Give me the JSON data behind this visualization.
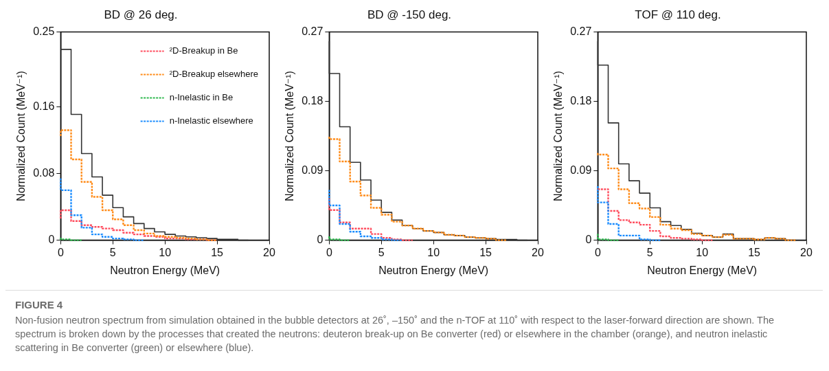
{
  "chart_data": [
    {
      "type": "step",
      "title": "BD @ 26 deg.",
      "xlabel": "Neutron Energy (MeV)",
      "ylabel": "Normalized Count (MeV⁻¹)",
      "x": [
        0,
        1,
        2,
        3,
        4,
        5,
        6,
        7,
        8,
        9,
        10,
        11,
        12,
        13,
        14,
        15,
        16,
        17,
        18
      ],
      "xlim": [
        0,
        20
      ],
      "xticks": [
        0,
        5,
        10,
        15,
        20
      ],
      "ylim": [
        0,
        0.25
      ],
      "yticks": [
        0,
        0.08,
        0.16,
        0.25
      ],
      "grid": false,
      "legend": "top right",
      "series": [
        {
          "color": "#333333",
          "line_style": "solid",
          "values": [
            0.229,
            0.229,
            0.151,
            0.104,
            0.076,
            0.054,
            0.039,
            0.028,
            0.02,
            0.014,
            0.01,
            0.007,
            0.005,
            0.004,
            0.003,
            0.002,
            0.001,
            0.001,
            0
          ]
        },
        {
          "name": "²D-Breakup in Be",
          "color": "#ff4d5e",
          "line_style": "dotted",
          "values": [
            0.026,
            0.036,
            0.023,
            0.018,
            0.016,
            0.014,
            0.012,
            0.009,
            0.007,
            0.005,
            0.004,
            0.002,
            0.002,
            0.001,
            0.001,
            0,
            null,
            null,
            null
          ]
        },
        {
          "name": "²D-Breakup elsewhere",
          "color": "#ff8c1a",
          "line_style": "dotted",
          "values": [
            0.125,
            0.132,
            0.097,
            0.07,
            0.052,
            0.036,
            0.025,
            0.018,
            0.012,
            0.008,
            0.005,
            0.004,
            0.003,
            0.002,
            0.001,
            0,
            null,
            null,
            null
          ]
        },
        {
          "name": "n-Inelastic in Be",
          "color": "#2db84d",
          "line_style": "dotted",
          "values": [
            0.003,
            0.001,
            0,
            null,
            null,
            null,
            null,
            null,
            null,
            null,
            null,
            null,
            null,
            null,
            null,
            null,
            null,
            null,
            null
          ]
        },
        {
          "name": "n-Inelastic elsewhere",
          "color": "#1a8cff",
          "line_style": "dotted",
          "values": [
            0.074,
            0.06,
            0.03,
            0.015,
            0.007,
            0.004,
            0.002,
            0.001,
            0,
            null,
            null,
            null,
            null,
            null,
            null,
            null,
            null,
            null,
            null
          ]
        }
      ]
    },
    {
      "type": "step",
      "title": "BD @ -150 deg.",
      "xlabel": "Neutron Energy (MeV)",
      "ylabel": "Normalized Count (MeV⁻¹)",
      "x": [
        0,
        1,
        2,
        3,
        4,
        5,
        6,
        7,
        8,
        9,
        10,
        11,
        12,
        13,
        14,
        15,
        16,
        17,
        18,
        19
      ],
      "xlim": [
        0,
        20
      ],
      "xticks": [
        0,
        5,
        10,
        15,
        20
      ],
      "ylim": [
        0,
        0.27
      ],
      "yticks": [
        0,
        0.09,
        0.18,
        0.27
      ],
      "grid": false,
      "series": [
        {
          "color": "#333333",
          "line_style": "solid",
          "values": [
            0.258,
            0.216,
            0.147,
            0.101,
            0.078,
            0.052,
            0.036,
            0.026,
            0.019,
            0.015,
            0.012,
            0.01,
            0.007,
            0.006,
            0.004,
            0.003,
            0.002,
            0.001,
            0.001,
            0
          ]
        },
        {
          "color": "#ff4d5e",
          "line_style": "dotted",
          "values": [
            0.054,
            0.039,
            0.023,
            0.015,
            0.015,
            0.008,
            0.003,
            0.001,
            0,
            null,
            null,
            null,
            null,
            null,
            null,
            null,
            null,
            null,
            null,
            null
          ]
        },
        {
          "color": "#ff8c1a",
          "line_style": "dotted",
          "values": [
            0.134,
            0.131,
            0.102,
            0.076,
            0.058,
            0.042,
            0.033,
            0.024,
            0.019,
            0.015,
            0.012,
            0.01,
            0.007,
            0.006,
            0.004,
            0.003,
            0.002,
            0,
            null,
            null
          ]
        },
        {
          "color": "#2db84d",
          "line_style": "dotted",
          "values": [
            0.005,
            0.001,
            0,
            null,
            null,
            null,
            null,
            null,
            null,
            null,
            null,
            null,
            null,
            null,
            null,
            null,
            null,
            null,
            null,
            null
          ]
        },
        {
          "color": "#1a8cff",
          "line_style": "dotted",
          "values": [
            0.065,
            0.045,
            0.021,
            0.011,
            0.005,
            0.003,
            0.001,
            0,
            null,
            null,
            null,
            null,
            null,
            null,
            null,
            null,
            null,
            null,
            null,
            null
          ]
        }
      ]
    },
    {
      "type": "step",
      "title": "TOF @ 110 deg.",
      "xlabel": "Neutron Energy (MeV)",
      "ylabel": "Normalized Count (MeV⁻¹)",
      "x": [
        0,
        1,
        2,
        3,
        4,
        5,
        6,
        7,
        8,
        9,
        10,
        11,
        12,
        13,
        14,
        15,
        16,
        17,
        18,
        19
      ],
      "xlim": [
        0,
        20
      ],
      "xticks": [
        0,
        5,
        10,
        15,
        20
      ],
      "ylim": [
        0,
        0.27
      ],
      "yticks": [
        0,
        0.09,
        0.18,
        0.27
      ],
      "grid": false,
      "series": [
        {
          "color": "#333333",
          "line_style": "solid",
          "values": [
            0.258,
            0.227,
            0.152,
            0.099,
            0.077,
            0.061,
            0.042,
            0.024,
            0.019,
            0.014,
            0.009,
            0.006,
            0.004,
            0.008,
            0.002,
            0.002,
            0.001,
            0.003,
            0.002,
            0
          ]
        },
        {
          "color": "#ff4d5e",
          "line_style": "dotted",
          "values": [
            0.066,
            0.066,
            0.038,
            0.026,
            0.023,
            0.02,
            0.012,
            0.005,
            0.003,
            0.002,
            0.001,
            0,
            null,
            null,
            null,
            null,
            null,
            null,
            null,
            null
          ]
        },
        {
          "color": "#ff8c1a",
          "line_style": "dotted",
          "values": [
            0.113,
            0.111,
            0.093,
            0.066,
            0.048,
            0.041,
            0.03,
            0.02,
            0.015,
            0.013,
            0.008,
            0.006,
            0.004,
            0.007,
            0.002,
            0.002,
            0.001,
            0.003,
            0.002,
            0
          ]
        },
        {
          "color": "#2db84d",
          "line_style": "dotted",
          "values": [
            0.008,
            0.001,
            0,
            null,
            null,
            null,
            null,
            null,
            null,
            null,
            null,
            null,
            null,
            null,
            null,
            null,
            null,
            null,
            null,
            null
          ]
        },
        {
          "color": "#1a8cff",
          "line_style": "dotted",
          "values": [
            0.07,
            0.049,
            0.021,
            0.006,
            0.006,
            0.001,
            0,
            null,
            null,
            null,
            null,
            null,
            null,
            null,
            null,
            null,
            null,
            null,
            null,
            null
          ]
        }
      ]
    },
    {
      "type": "other",
      "title": "FIGURE 4",
      "annotations": [
        "Non-fusion neutron spectrum from simulation obtained in the bubble detectors at 26˚, –150˚ and the n-TOF at 110˚ with respect to the laser-forward direction are shown. The spectrum is broken down by the processes that created the neutrons: deuteron break-up on Be converter (red) or elsewhere in the chamber (orange), and neutron inelastic scattering in Be converter (green) or elsewhere (blue)."
      ]
    }
  ]
}
